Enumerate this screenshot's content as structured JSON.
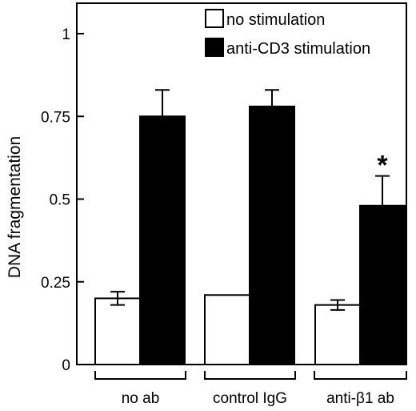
{
  "chart_data": {
    "type": "bar",
    "categories": [
      "no ab",
      "control IgG",
      "anti-β1 ab"
    ],
    "series": [
      {
        "name": "no stimulation",
        "values": [
          0.2,
          0.21,
          0.18
        ],
        "errors": [
          0.02,
          null,
          0.015
        ],
        "color": "#ffffff"
      },
      {
        "name": "anti-CD3 stimulation",
        "values": [
          0.75,
          0.78,
          0.48
        ],
        "errors": [
          0.08,
          0.05,
          0.09
        ],
        "color": "#000000"
      }
    ],
    "ylabel": "DNA  fragmentation",
    "xlabel": "",
    "ylim": [
      0,
      1.1
    ],
    "yticks": [
      0,
      0.25,
      0.5,
      0.75,
      1
    ],
    "ytick_labels": [
      "0",
      "0.25",
      "0.5",
      "0.75",
      "1"
    ],
    "legend_position": "top-right",
    "annotations": [
      {
        "text": "*",
        "category": "anti-β1 ab",
        "series": "anti-CD3 stimulation"
      }
    ],
    "grid": false
  }
}
